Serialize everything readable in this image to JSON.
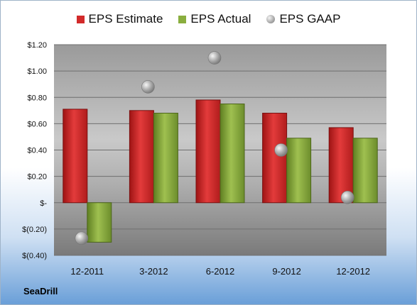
{
  "company": "SeaDrill",
  "chart_data": {
    "type": "bar",
    "categories": [
      "12-2011",
      "3-2012",
      "6-2012",
      "9-2012",
      "12-2012"
    ],
    "series": [
      {
        "name": "EPS Estimate",
        "values": [
          0.71,
          0.7,
          0.78,
          0.68,
          0.57
        ],
        "color": "#d22a2a",
        "kind": "bar"
      },
      {
        "name": "EPS Actual",
        "values": [
          -0.3,
          0.68,
          0.75,
          0.49,
          0.49
        ],
        "color": "#8aae3f",
        "kind": "bar"
      },
      {
        "name": "EPS GAAP",
        "values": [
          -0.27,
          0.88,
          1.1,
          0.4,
          0.04
        ],
        "color": "#a8a8a8",
        "kind": "marker"
      }
    ],
    "ylim": [
      -0.4,
      1.2
    ],
    "yticks": [
      -0.4,
      -0.2,
      0,
      0.2,
      0.4,
      0.6,
      0.8,
      1.0,
      1.2
    ],
    "ytick_labels": [
      "$(0.40)",
      "$(0.20)",
      "$-",
      "$0.20",
      "$0.40",
      "$0.60",
      "$0.80",
      "$1.00",
      "$1.20"
    ],
    "grid": true,
    "legend": "top"
  }
}
